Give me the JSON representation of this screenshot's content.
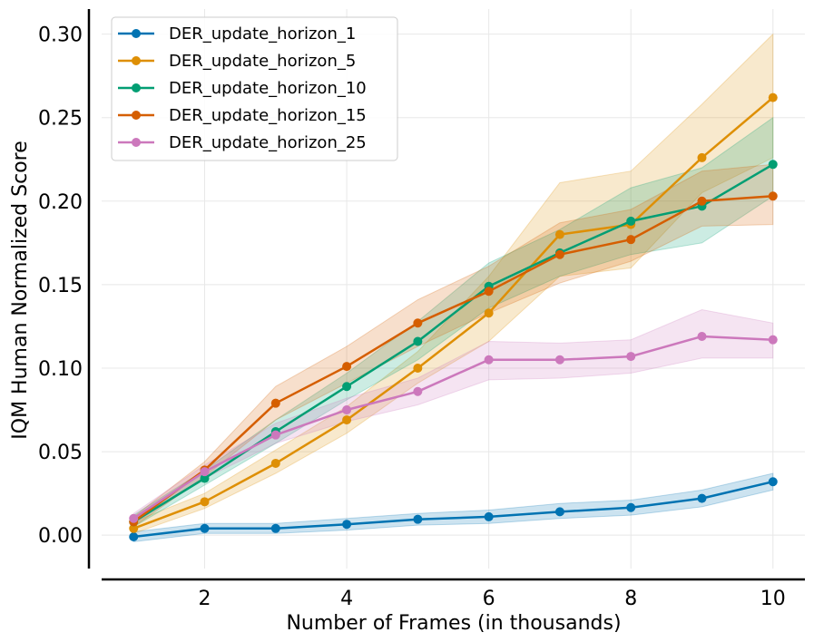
{
  "chart_data": {
    "type": "line",
    "title": "",
    "xlabel": "Number of Frames (in thousands)",
    "ylabel": "IQM Human Normalized Score",
    "xlim": [
      0.55,
      10.45
    ],
    "ylim": [
      -0.02,
      0.315
    ],
    "x_ticks": [
      2,
      4,
      6,
      8,
      10
    ],
    "y_ticks": [
      0.0,
      0.05,
      0.1,
      0.15,
      0.2,
      0.25,
      0.3
    ],
    "x_tick_labels": [
      "2",
      "4",
      "6",
      "8",
      "10"
    ],
    "y_tick_labels": [
      "0.00",
      "0.05",
      "0.10",
      "0.15",
      "0.20",
      "0.25",
      "0.30"
    ],
    "grid": true,
    "legend_position": "top-left",
    "x": [
      1,
      2,
      3,
      4,
      5,
      6,
      7,
      8,
      9,
      10
    ],
    "series": [
      {
        "name": "DER_update_horizon_1",
        "color": "#0173b2",
        "values": [
          -0.001,
          0.004,
          0.004,
          0.0065,
          0.0095,
          0.011,
          0.014,
          0.0165,
          0.022,
          0.032
        ],
        "lower": [
          -0.004,
          0.001,
          0.001,
          0.003,
          0.006,
          0.007,
          0.01,
          0.012,
          0.017,
          0.027
        ],
        "upper": [
          0.002,
          0.007,
          0.007,
          0.01,
          0.013,
          0.015,
          0.019,
          0.021,
          0.027,
          0.037
        ]
      },
      {
        "name": "DER_update_horizon_5",
        "color": "#de8f05",
        "values": [
          0.004,
          0.02,
          0.043,
          0.069,
          0.1,
          0.133,
          0.18,
          0.186,
          0.226,
          0.262
        ],
        "lower": [
          0.001,
          0.016,
          0.037,
          0.061,
          0.091,
          0.116,
          0.155,
          0.16,
          0.205,
          0.226
        ],
        "upper": [
          0.008,
          0.025,
          0.051,
          0.077,
          0.11,
          0.155,
          0.211,
          0.218,
          0.258,
          0.3
        ]
      },
      {
        "name": "DER_update_horizon_10",
        "color": "#029e73",
        "values": [
          0.008,
          0.034,
          0.062,
          0.089,
          0.116,
          0.149,
          0.169,
          0.188,
          0.197,
          0.222
        ],
        "lower": [
          0.005,
          0.03,
          0.055,
          0.081,
          0.105,
          0.136,
          0.155,
          0.168,
          0.175,
          0.203
        ],
        "upper": [
          0.012,
          0.039,
          0.069,
          0.097,
          0.128,
          0.163,
          0.183,
          0.208,
          0.22,
          0.25
        ]
      },
      {
        "name": "DER_update_horizon_15",
        "color": "#d55e00",
        "values": [
          0.008,
          0.039,
          0.079,
          0.101,
          0.127,
          0.146,
          0.168,
          0.177,
          0.2,
          0.203
        ],
        "lower": [
          0.005,
          0.035,
          0.069,
          0.091,
          0.113,
          0.133,
          0.151,
          0.164,
          0.185,
          0.186
        ],
        "upper": [
          0.011,
          0.044,
          0.089,
          0.113,
          0.141,
          0.161,
          0.187,
          0.195,
          0.218,
          0.222
        ]
      },
      {
        "name": "DER_update_horizon_25",
        "color": "#cc78bc",
        "values": [
          0.01,
          0.038,
          0.06,
          0.075,
          0.086,
          0.105,
          0.105,
          0.107,
          0.119,
          0.117
        ],
        "lower": [
          0.007,
          0.034,
          0.055,
          0.068,
          0.078,
          0.093,
          0.094,
          0.097,
          0.106,
          0.106
        ],
        "upper": [
          0.013,
          0.042,
          0.067,
          0.082,
          0.094,
          0.116,
          0.115,
          0.117,
          0.135,
          0.127
        ]
      }
    ]
  }
}
